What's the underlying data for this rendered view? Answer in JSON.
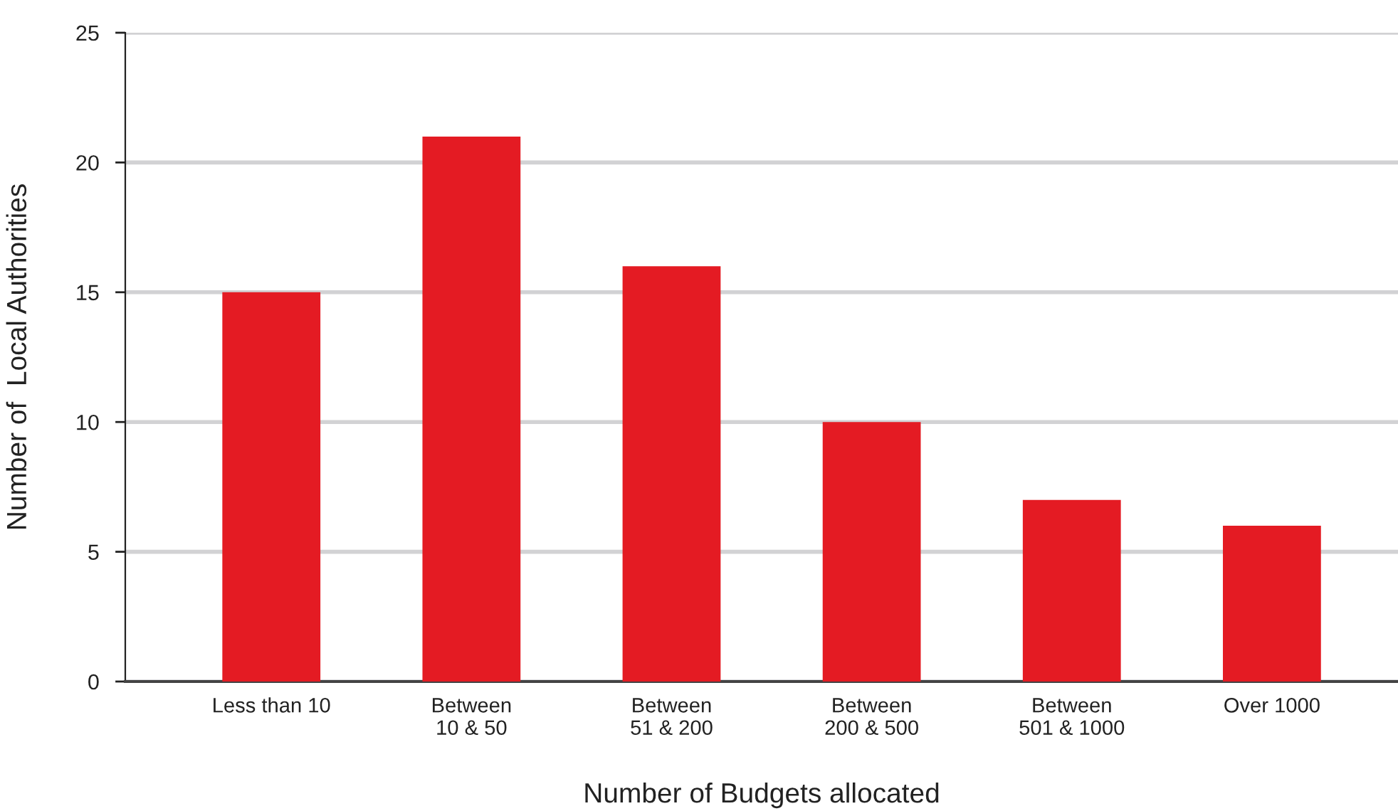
{
  "chart_data": {
    "type": "bar",
    "categories": [
      "Less than 10",
      "Between\n10 & 50",
      "Between\n51 & 200",
      "Between\n200 & 500",
      "Between\n501 & 1000",
      "Over 1000"
    ],
    "values": [
      15,
      21,
      16,
      10,
      7,
      6
    ],
    "color": "#e41b23",
    "xlabel": "Number of Budgets allocated",
    "ylabel": "Number of  Local Authorities",
    "ylim": [
      0,
      25
    ],
    "yticks": [
      0,
      5,
      10,
      15,
      20,
      25
    ],
    "grid": "y",
    "legend": false
  }
}
